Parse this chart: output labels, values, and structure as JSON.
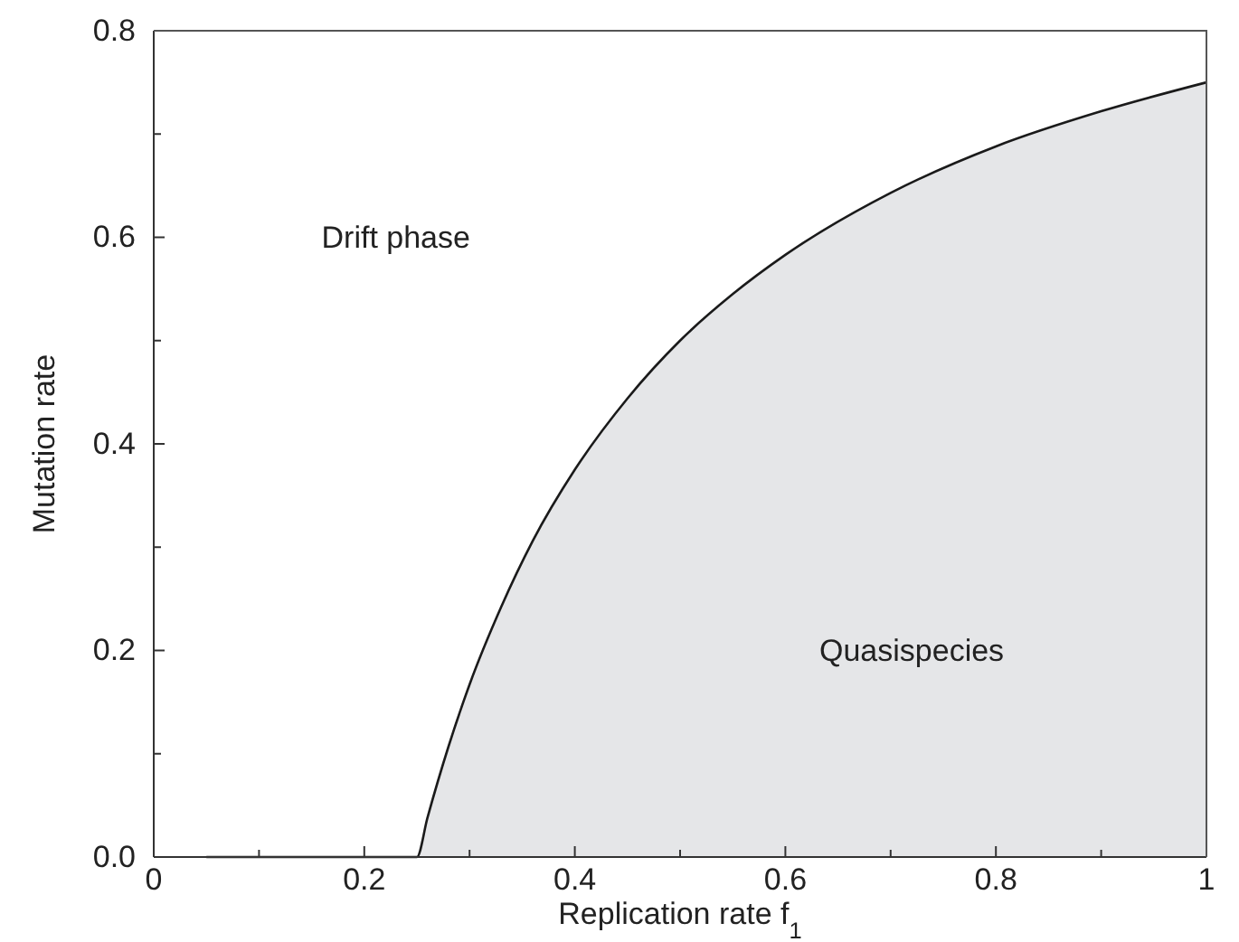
{
  "chart_data": {
    "type": "line",
    "xlabel": "Replication rate f$_{1}$",
    "ylabel": "Mutation rate",
    "xlim": [
      0,
      1
    ],
    "ylim": [
      0,
      0.8
    ],
    "xticks": [
      0,
      {
        "value": 0.1,
        "label": null
      },
      0.2,
      {
        "value": 0.3,
        "label": null
      },
      0.4,
      {
        "value": 0.5,
        "label": null
      },
      0.6,
      {
        "value": 0.7,
        "label": null
      },
      0.8,
      {
        "value": 0.9,
        "label": null
      },
      1
    ],
    "yticks": [
      {
        "value": 0,
        "label": "0.0"
      },
      {
        "value": 0.1,
        "label": null
      },
      0.2,
      {
        "value": 0.3,
        "label": null
      },
      0.4,
      {
        "value": 0.5,
        "label": null
      },
      0.6,
      {
        "value": 0.7,
        "label": null
      },
      0.8
    ],
    "series": [
      {
        "type": "area",
        "color": "#e5e6e8",
        "x": [
          0.25,
          0.26,
          0.28,
          0.3,
          0.33,
          0.36,
          0.4,
          0.45,
          0.5,
          0.55,
          0.6,
          0.7,
          0.8,
          0.9,
          1.0
        ],
        "values": [
          0,
          0.038,
          0.107,
          0.167,
          0.242,
          0.306,
          0.375,
          0.444,
          0.5,
          0.545,
          0.583,
          0.643,
          0.688,
          0.722,
          0.75
        ]
      },
      {
        "color": "#1a1a1a",
        "x": [
          0.05,
          0.25,
          0.26,
          0.28,
          0.3,
          0.33,
          0.36,
          0.4,
          0.45,
          0.5,
          0.55,
          0.6,
          0.7,
          0.8,
          0.9,
          1.0
        ],
        "values": [
          0,
          0,
          0.038,
          0.107,
          0.167,
          0.242,
          0.306,
          0.375,
          0.444,
          0.5,
          0.545,
          0.583,
          0.643,
          0.688,
          0.722,
          0.75
        ]
      }
    ],
    "annotations": [
      "Drift phase",
      "Quasispecies"
    ],
    "grid": false
  }
}
